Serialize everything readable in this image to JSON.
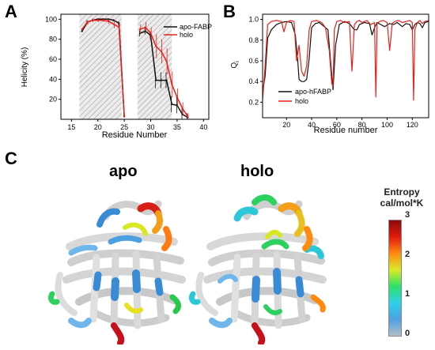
{
  "panels": {
    "a": "A",
    "b": "B",
    "c": "C"
  },
  "chart_data": [
    {
      "id": "A",
      "type": "line",
      "xlabel": "Residue Number",
      "ylabel": "Helicity (%)",
      "xlim": [
        13,
        41
      ],
      "ylim": [
        0,
        105
      ],
      "xticks": [
        15,
        20,
        25,
        30,
        35,
        40
      ],
      "yticks": [
        20,
        40,
        60,
        80,
        100
      ],
      "shaded_regions": [
        [
          16.5,
          24.5
        ],
        [
          27.5,
          34
        ]
      ],
      "legend": "top-right",
      "series": [
        {
          "name": "apo-FABP",
          "color": "#111111",
          "x": [
            17,
            18,
            19,
            20,
            21,
            22,
            23,
            24,
            25,
            28,
            29,
            30,
            31,
            32,
            33,
            34,
            35,
            36,
            37
          ],
          "y": [
            88,
            97,
            99,
            100,
            100,
            100,
            99,
            96,
            3,
            86,
            88,
            84,
            39,
            39,
            39,
            15,
            14,
            5,
            2
          ],
          "err": [
            0,
            2,
            1,
            1,
            1,
            1,
            1,
            2,
            1,
            3,
            3,
            4,
            8,
            8,
            8,
            8,
            8,
            6,
            4
          ]
        },
        {
          "name": "holo",
          "color": "#e8201a",
          "x": [
            17,
            18,
            19,
            20,
            21,
            22,
            23,
            24,
            25,
            28,
            29,
            30,
            31,
            32,
            33,
            34,
            35,
            36,
            37
          ],
          "y": [
            90,
            97,
            99,
            99,
            99,
            98,
            95,
            92,
            3,
            90,
            92,
            86,
            73,
            68,
            58,
            35,
            22,
            11,
            3
          ],
          "err": [
            1,
            2,
            2,
            2,
            2,
            3,
            4,
            5,
            1,
            5,
            5,
            6,
            12,
            12,
            13,
            13,
            9,
            6,
            3
          ]
        }
      ]
    },
    {
      "id": "B",
      "type": "line",
      "xlabel": "Residue number",
      "ylabel": "Q_i",
      "xlim": [
        1,
        133
      ],
      "ylim": [
        0.05,
        1.05
      ],
      "xticks": [
        20,
        40,
        60,
        80,
        100,
        120
      ],
      "yticks": [
        0.2,
        0.4,
        0.6,
        0.8,
        1.0
      ],
      "legend": "bottom-left",
      "series": [
        {
          "name": "apo-hFABP",
          "color": "#111111",
          "x": [
            1,
            3,
            5,
            8,
            12,
            16,
            20,
            24,
            27,
            29,
            30,
            32,
            34,
            36,
            38,
            40,
            43,
            46,
            50,
            53,
            55,
            57,
            59,
            62,
            66,
            70,
            74,
            76,
            78,
            82,
            86,
            88,
            90,
            92,
            95,
            98,
            102,
            105,
            108,
            112,
            115,
            118,
            120,
            122,
            124,
            126,
            128,
            130,
            133
          ],
          "y": [
            0.3,
            0.45,
            0.82,
            0.9,
            0.95,
            0.97,
            0.98,
            0.97,
            0.85,
            0.6,
            0.42,
            0.4,
            0.4,
            0.42,
            0.62,
            0.92,
            0.96,
            0.97,
            0.93,
            0.9,
            0.6,
            0.32,
            0.75,
            0.95,
            0.98,
            0.96,
            0.9,
            0.9,
            0.95,
            0.97,
            0.96,
            0.85,
            0.92,
            0.97,
            0.95,
            0.93,
            0.96,
            0.95,
            0.97,
            0.93,
            0.96,
            0.95,
            0.9,
            0.95,
            0.97,
            0.96,
            0.92,
            0.97,
            0.98
          ]
        },
        {
          "name": "holo",
          "color": "#e8201a",
          "x": [
            1,
            3,
            5,
            8,
            12,
            16,
            18,
            20,
            23,
            26,
            28,
            30,
            32,
            34,
            36,
            38,
            40,
            44,
            48,
            51,
            54,
            56,
            57,
            58,
            60,
            63,
            66,
            70,
            72,
            74,
            76,
            78,
            80,
            84,
            87,
            90,
            91,
            92,
            94,
            97,
            100,
            102,
            104,
            106,
            109,
            112,
            115,
            118,
            120,
            121,
            122,
            124,
            126,
            128,
            130,
            133
          ],
          "y": [
            0.22,
            0.55,
            0.95,
            0.98,
            0.99,
            0.98,
            0.88,
            0.97,
            0.99,
            0.98,
            0.6,
            0.75,
            0.5,
            0.45,
            0.55,
            0.9,
            0.98,
            0.99,
            0.97,
            0.92,
            0.7,
            0.38,
            0.35,
            0.9,
            0.98,
            0.99,
            0.97,
            0.98,
            0.5,
            0.95,
            0.98,
            0.99,
            0.97,
            0.99,
            0.95,
            0.97,
            0.25,
            0.96,
            0.98,
            0.99,
            0.97,
            0.7,
            0.96,
            0.98,
            0.99,
            0.97,
            0.98,
            0.99,
            0.97,
            0.22,
            0.9,
            0.97,
            0.99,
            0.96,
            0.98,
            0.99
          ]
        }
      ]
    }
  ],
  "panel_c": {
    "labels": {
      "apo": "apo",
      "holo": "holo"
    },
    "colorbar": {
      "title_line1": "Entropy",
      "title_line2": "cal/mol*K",
      "ticks": [
        "0",
        "1",
        "2",
        "3"
      ],
      "stops": [
        "#b0bec8",
        "#4fa0e0",
        "#2fd0e8",
        "#2ee06a",
        "#d9ea26",
        "#ff8a10",
        "#e21a10",
        "#8c0a0a"
      ]
    }
  }
}
